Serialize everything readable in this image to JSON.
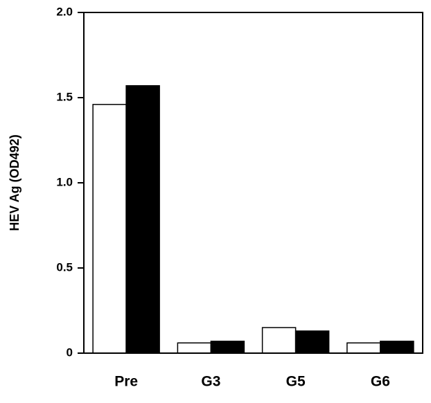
{
  "chart_data": {
    "type": "bar",
    "y_label": "HEV Ag (OD492)",
    "categories": [
      "Pre",
      "G3",
      "G5",
      "G6"
    ],
    "series": [
      {
        "color": "#ffffff",
        "values": [
          1.46,
          0.06,
          0.15,
          0.06
        ]
      },
      {
        "color": "#000000",
        "values": [
          1.57,
          0.07,
          0.13,
          0.07
        ]
      }
    ],
    "ylim": [
      0,
      2
    ],
    "yticks": [
      0,
      {
        "value": 0.5,
        "label": "0.5"
      },
      {
        "value": 1,
        "label": "1.0"
      },
      {
        "value": 1.5,
        "label": "1.5"
      },
      {
        "value": 2,
        "label": "2.0"
      }
    ]
  }
}
